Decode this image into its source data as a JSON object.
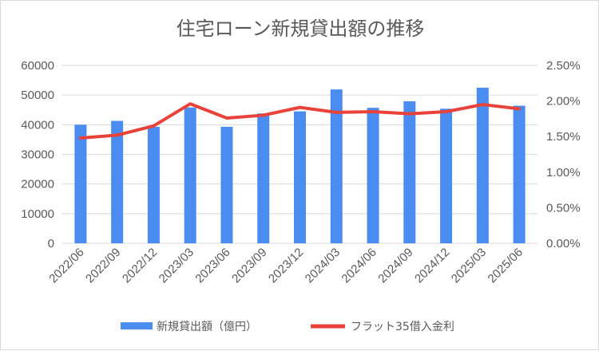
{
  "chart_data": {
    "type": "bar",
    "title": "住宅ローン新規貸出額の推移",
    "categories": [
      "2022/06",
      "2022/09",
      "2022/12",
      "2023/03",
      "2023/06",
      "2023/09",
      "2023/12",
      "2024/03",
      "2024/06",
      "2024/09",
      "2024/12",
      "2025/03",
      "2025/06"
    ],
    "series": [
      {
        "name": "新規貸出額（億円）",
        "type": "bar",
        "axis": "left",
        "color": "#4a8cf0",
        "values": [
          40000,
          41300,
          39300,
          45800,
          39300,
          43800,
          44500,
          51900,
          45700,
          47900,
          45400,
          52500,
          46400
        ]
      },
      {
        "name": "フラット35借入金利",
        "type": "line",
        "axis": "right",
        "color": "#e8423a",
        "values": [
          1.48,
          1.52,
          1.65,
          1.96,
          1.76,
          1.8,
          1.91,
          1.84,
          1.85,
          1.82,
          1.85,
          1.95,
          1.89
        ]
      }
    ],
    "y_left": {
      "min": 0,
      "max": 60000,
      "ticks": [
        "0",
        "10000",
        "20000",
        "30000",
        "40000",
        "50000",
        "60000"
      ]
    },
    "y_right": {
      "min": 0,
      "max": 0.025,
      "ticks": [
        "0.00%",
        "0.50%",
        "1.00%",
        "1.50%",
        "2.00%",
        "2.50%"
      ]
    },
    "grid": true,
    "legend_position": "bottom"
  }
}
